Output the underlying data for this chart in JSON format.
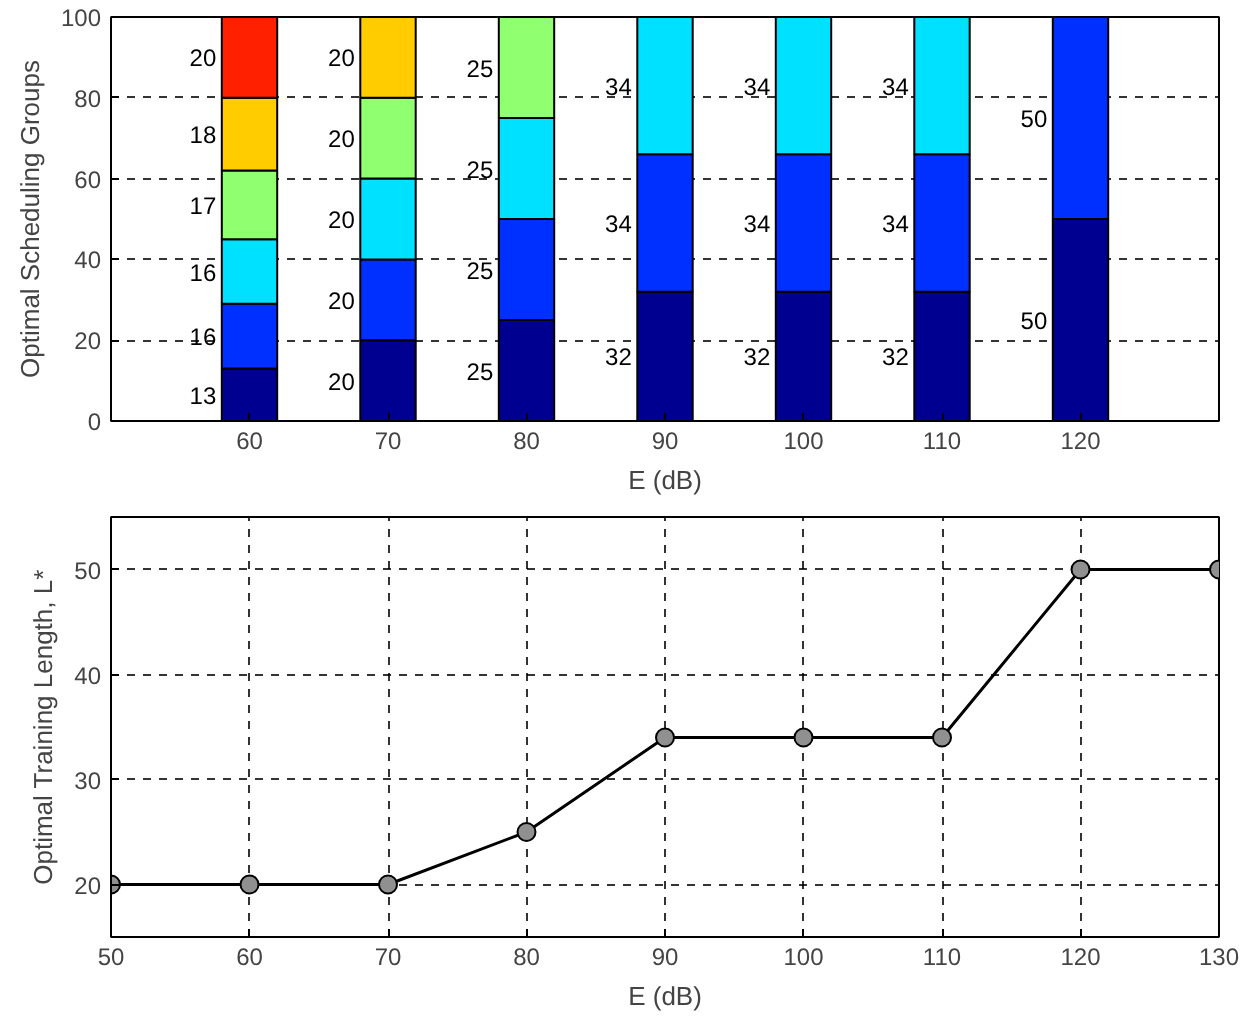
{
  "chart_data": [
    {
      "type": "bar",
      "stacked": true,
      "x": [
        60,
        70,
        80,
        90,
        100,
        110,
        120
      ],
      "xlabel": "E (dB)",
      "ylabel": "Optimal Scheduling Groups",
      "xlim": [
        50,
        130
      ],
      "xticks": [
        60,
        70,
        80,
        90,
        100,
        110,
        120
      ],
      "ylim": [
        0,
        100
      ],
      "yticks": [
        0,
        20,
        40,
        60,
        80,
        100
      ],
      "grid": "y",
      "data_labels": true,
      "series": [
        {
          "values": [
            13,
            20,
            25,
            32,
            32,
            32,
            50
          ],
          "colors": [
            "#000090",
            "#000090",
            "#000090",
            "#000090",
            "#000090",
            "#000090",
            "#000090"
          ]
        },
        {
          "values": [
            16,
            20,
            25,
            34,
            34,
            34,
            50
          ],
          "colors": [
            "#0030ff",
            "#0030ff",
            "#0030ff",
            "#0030ff",
            "#0030ff",
            "#0030ff",
            "#0030ff"
          ]
        },
        {
          "values": [
            16,
            20,
            25,
            34,
            34,
            34,
            null
          ],
          "colors": [
            "#00e0ff",
            "#00e0ff",
            "#00e0ff",
            "#00e0ff",
            "#00e0ff",
            "#00e0ff",
            "#00e0ff"
          ]
        },
        {
          "values": [
            17,
            20,
            25,
            null,
            null,
            null,
            null
          ],
          "colors": [
            "#90ff70",
            "#90ff70",
            "#90ff70",
            "#90ff70",
            "#90ff70",
            "#90ff70",
            "#90ff70"
          ]
        },
        {
          "values": [
            18,
            20,
            null,
            null,
            null,
            null,
            null
          ],
          "colors": [
            "#ffcc00",
            "#ffcc00",
            "#ffcc00",
            "#ffcc00",
            "#ffcc00",
            "#ffcc00",
            "#ffcc00"
          ]
        },
        {
          "values": [
            20,
            null,
            null,
            null,
            null,
            null,
            null
          ],
          "colors": [
            "#ff2000",
            "#ff2000",
            "#ff2000",
            "#ff2000",
            "#ff2000",
            "#ff2000",
            "#ff2000"
          ]
        }
      ]
    },
    {
      "type": "line",
      "x": [
        50,
        60,
        70,
        80,
        90,
        100,
        110,
        120,
        130
      ],
      "xlabel": "E (dB)",
      "ylabel": "Optimal Training Length, L*",
      "xlim": [
        50,
        130
      ],
      "xticks": [
        50,
        60,
        70,
        80,
        90,
        100,
        110,
        120,
        130
      ],
      "ylim": [
        15,
        55
      ],
      "yticks": [
        20,
        30,
        40,
        50
      ],
      "grid": true,
      "marker": "circle",
      "line_style": "solid",
      "series": [
        {
          "color": "#000000",
          "values": [
            20,
            20,
            20,
            25,
            34,
            34,
            34,
            50,
            50
          ]
        }
      ]
    }
  ]
}
